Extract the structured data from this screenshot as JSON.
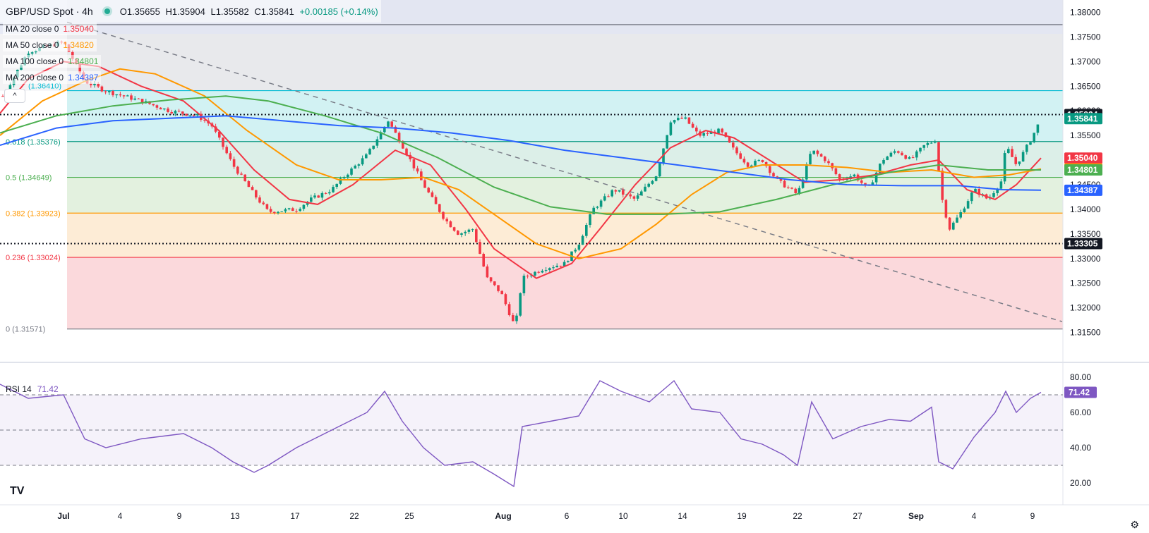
{
  "header": {
    "symbol": "GBP/USD Spot · 4h",
    "open": "O1.35655",
    "high": "H1.35904",
    "low": "L1.35582",
    "close": "C1.35841",
    "change": "+0.00185 (+0.14%)"
  },
  "ma_legend": [
    {
      "label": "MA 20 close 0",
      "value": "1.35040",
      "color": "#f23645"
    },
    {
      "label": "MA 50 close 0",
      "value": "1.34820",
      "color": "#ff9800"
    },
    {
      "label": "MA 100 close 0",
      "value": "1.34801",
      "color": "#4caf50"
    },
    {
      "label": "MA 200 close 0",
      "value": "1.34387",
      "color": "#2962ff"
    }
  ],
  "collapse_label": "^",
  "rsi_legend": {
    "label": "RSI 14",
    "value": "71.42"
  },
  "tv_logo": "TV",
  "settings_icon": "gear-icon",
  "chart_data": [
    {
      "type": "candlestick",
      "title": "GBP/USD Spot · 4h",
      "x_ticks": [
        "Jul",
        "4",
        "9",
        "13",
        "17",
        "22",
        "25",
        "Aug",
        "6",
        "10",
        "14",
        "19",
        "22",
        "27",
        "Sep",
        "4",
        "9"
      ],
      "y_ticks": [
        "1.38000",
        "1.37500",
        "1.37000",
        "1.36500",
        "1.36000",
        "1.35500",
        "1.35000",
        "1.34500",
        "1.34000",
        "1.33500",
        "1.33000",
        "1.32500",
        "1.32000",
        "1.31500"
      ],
      "ylim": [
        1.3115,
        1.3825
      ],
      "fib_levels": [
        {
          "label": "0.618 (1.35376)",
          "value": 1.35376,
          "color": "#089981"
        },
        {
          "label": "0.5 (1.34649)",
          "value": 1.34649,
          "color": "#4caf50"
        },
        {
          "label": "0.382 (1.33923)",
          "value": 1.33923,
          "color": "#ff9800"
        },
        {
          "label": "0.236 (1.33024)",
          "value": 1.33024,
          "color": "#f23645"
        },
        {
          "label": "0 (1.31571)",
          "value": 1.31571,
          "color": "#787b86"
        },
        {
          "label": "(1.36410)",
          "value": 1.3641,
          "color": "#00bcd4"
        }
      ],
      "horizontal_lines": [
        {
          "value": 1.3775,
          "style": "solid",
          "color": "#5d606b"
        },
        {
          "value": 1.35924,
          "style": "dotted",
          "color": "#131722"
        },
        {
          "value": 1.33305,
          "style": "dotted",
          "color": "#131722"
        }
      ],
      "price_badges": [
        {
          "text": "1.35924",
          "value": 1.35924,
          "color": "#131722"
        },
        {
          "text": "1.35841",
          "value": 1.35841,
          "color": "#089981"
        },
        {
          "text": "1.35040",
          "value": 1.3504,
          "color": "#f23645"
        },
        {
          "text": "1.34820",
          "value": 1.3482,
          "color": "#ff9800"
        },
        {
          "text": "1.34801",
          "value": 1.34801,
          "color": "#4caf50"
        },
        {
          "text": "1.34387",
          "value": 1.34387,
          "color": "#2962ff"
        },
        {
          "text": "1.33305",
          "value": 1.33305,
          "color": "#131722"
        }
      ],
      "close_path": [
        [
          0,
          1.362
        ],
        [
          40,
          1.372
        ],
        [
          90,
          1.374
        ],
        [
          120,
          1.366
        ],
        [
          150,
          1.364
        ],
        [
          200,
          1.362
        ],
        [
          240,
          1.36
        ],
        [
          280,
          1.359
        ],
        [
          300,
          1.357
        ],
        [
          330,
          1.349
        ],
        [
          360,
          1.343
        ],
        [
          380,
          1.3395
        ],
        [
          420,
          1.34
        ],
        [
          440,
          1.342
        ],
        [
          470,
          1.344
        ],
        [
          490,
          1.347
        ],
        [
          520,
          1.351
        ],
        [
          550,
          1.358
        ],
        [
          570,
          1.353
        ],
        [
          600,
          1.345
        ],
        [
          630,
          1.338
        ],
        [
          650,
          1.335
        ],
        [
          670,
          1.336
        ],
        [
          690,
          1.326
        ],
        [
          710,
          1.323
        ],
        [
          730,
          1.316
        ],
        [
          740,
          1.326
        ],
        [
          770,
          1.328
        ],
        [
          800,
          1.329
        ],
        [
          820,
          1.333
        ],
        [
          840,
          1.34
        ],
        [
          870,
          1.344
        ],
        [
          900,
          1.342
        ],
        [
          930,
          1.347
        ],
        [
          950,
          1.358
        ],
        [
          970,
          1.3585
        ],
        [
          990,
          1.355
        ],
        [
          1020,
          1.356
        ],
        [
          1040,
          1.352
        ],
        [
          1060,
          1.349
        ],
        [
          1080,
          1.35
        ],
        [
          1100,
          1.346
        ],
        [
          1130,
          1.343
        ],
        [
          1150,
          1.352
        ],
        [
          1170,
          1.35
        ],
        [
          1190,
          1.346
        ],
        [
          1210,
          1.347
        ],
        [
          1230,
          1.344
        ],
        [
          1250,
          1.35
        ],
        [
          1270,
          1.352
        ],
        [
          1290,
          1.35
        ],
        [
          1310,
          1.353
        ],
        [
          1325,
          1.354
        ],
        [
          1335,
          1.342
        ],
        [
          1345,
          1.336
        ],
        [
          1360,
          1.339
        ],
        [
          1380,
          1.344
        ],
        [
          1400,
          1.342
        ],
        [
          1420,
          1.346
        ],
        [
          1425,
          1.353
        ],
        [
          1440,
          1.349
        ],
        [
          1460,
          1.354
        ],
        [
          1475,
          1.3584
        ]
      ],
      "ma_paths": [
        {
          "name": "MA 20",
          "color": "#f23645",
          "points": [
            [
              0,
              1.3595
            ],
            [
              40,
              1.3665
            ],
            [
              90,
              1.37
            ],
            [
              140,
              1.369
            ],
            [
              200,
              1.365
            ],
            [
              260,
              1.362
            ],
            [
              310,
              1.356
            ],
            [
              360,
              1.348
            ],
            [
              410,
              1.342
            ],
            [
              450,
              1.341
            ],
            [
              500,
              1.345
            ],
            [
              560,
              1.352
            ],
            [
              610,
              1.349
            ],
            [
              660,
              1.34
            ],
            [
              700,
              1.332
            ],
            [
              760,
              1.326
            ],
            [
              810,
              1.329
            ],
            [
              850,
              1.336
            ],
            [
              900,
              1.345
            ],
            [
              950,
              1.3525
            ],
            [
              1000,
              1.356
            ],
            [
              1040,
              1.3545
            ],
            [
              1090,
              1.35
            ],
            [
              1140,
              1.3455
            ],
            [
              1190,
              1.346
            ],
            [
              1240,
              1.347
            ],
            [
              1290,
              1.349
            ],
            [
              1330,
              1.35
            ],
            [
              1370,
              1.344
            ],
            [
              1410,
              1.342
            ],
            [
              1440,
              1.345
            ],
            [
              1475,
              1.3504
            ]
          ]
        },
        {
          "name": "MA 50",
          "color": "#ff9800",
          "points": [
            [
              0,
              1.355
            ],
            [
              60,
              1.362
            ],
            [
              120,
              1.366
            ],
            [
              170,
              1.3685
            ],
            [
              220,
              1.3675
            ],
            [
              290,
              1.363
            ],
            [
              350,
              1.356
            ],
            [
              420,
              1.349
            ],
            [
              480,
              1.346
            ],
            [
              540,
              1.346
            ],
            [
              600,
              1.3465
            ],
            [
              650,
              1.344
            ],
            [
              700,
              1.339
            ],
            [
              760,
              1.333
            ],
            [
              820,
              1.33
            ],
            [
              880,
              1.332
            ],
            [
              930,
              1.337
            ],
            [
              980,
              1.343
            ],
            [
              1030,
              1.3475
            ],
            [
              1080,
              1.349
            ],
            [
              1140,
              1.349
            ],
            [
              1200,
              1.3485
            ],
            [
              1260,
              1.3475
            ],
            [
              1320,
              1.348
            ],
            [
              1380,
              1.3465
            ],
            [
              1430,
              1.347
            ],
            [
              1475,
              1.3482
            ]
          ]
        },
        {
          "name": "MA 100",
          "color": "#4caf50",
          "points": [
            [
              0,
              1.3555
            ],
            [
              80,
              1.359
            ],
            [
              160,
              1.361
            ],
            [
              240,
              1.3622
            ],
            [
              320,
              1.363
            ],
            [
              380,
              1.362
            ],
            [
              460,
              1.359
            ],
            [
              540,
              1.3555
            ],
            [
              620,
              1.3505
            ],
            [
              700,
              1.3445
            ],
            [
              780,
              1.3405
            ],
            [
              860,
              1.339
            ],
            [
              940,
              1.339
            ],
            [
              1020,
              1.3395
            ],
            [
              1100,
              1.342
            ],
            [
              1180,
              1.345
            ],
            [
              1260,
              1.3475
            ],
            [
              1330,
              1.349
            ],
            [
              1400,
              1.348
            ],
            [
              1475,
              1.348
            ]
          ]
        },
        {
          "name": "MA 200",
          "color": "#2962ff",
          "points": [
            [
              0,
              1.353
            ],
            [
              80,
              1.3565
            ],
            [
              160,
              1.358
            ],
            [
              240,
              1.3585
            ],
            [
              320,
              1.359
            ],
            [
              400,
              1.358
            ],
            [
              480,
              1.357
            ],
            [
              560,
              1.3565
            ],
            [
              640,
              1.3555
            ],
            [
              720,
              1.354
            ],
            [
              800,
              1.352
            ],
            [
              880,
              1.3505
            ],
            [
              960,
              1.349
            ],
            [
              1040,
              1.3475
            ],
            [
              1120,
              1.346
            ],
            [
              1200,
              1.345
            ],
            [
              1280,
              1.3448
            ],
            [
              1360,
              1.3448
            ],
            [
              1420,
              1.344
            ],
            [
              1475,
              1.3439
            ]
          ]
        }
      ],
      "trendline": {
        "from": [
          95,
          1.378
        ],
        "to": [
          1505,
          1.3172
        ]
      }
    },
    {
      "type": "line",
      "title": "RSI 14",
      "y_ticks": [
        "80.00",
        "60.00",
        "40.00",
        "20.00"
      ],
      "ylim": [
        14,
        86
      ],
      "bands": [
        70,
        50,
        30
      ],
      "last_value": 71.42,
      "series": [
        [
          0,
          76
        ],
        [
          40,
          68
        ],
        [
          90,
          70
        ],
        [
          120,
          45
        ],
        [
          150,
          40
        ],
        [
          200,
          45
        ],
        [
          260,
          48
        ],
        [
          300,
          40
        ],
        [
          330,
          32
        ],
        [
          360,
          26
        ],
        [
          380,
          30
        ],
        [
          420,
          40
        ],
        [
          470,
          50
        ],
        [
          520,
          60
        ],
        [
          545,
          72
        ],
        [
          570,
          55
        ],
        [
          600,
          40
        ],
        [
          630,
          30
        ],
        [
          670,
          32
        ],
        [
          700,
          25
        ],
        [
          728,
          18
        ],
        [
          740,
          52
        ],
        [
          780,
          55
        ],
        [
          820,
          58
        ],
        [
          850,
          78
        ],
        [
          880,
          72
        ],
        [
          920,
          66
        ],
        [
          955,
          78
        ],
        [
          980,
          62
        ],
        [
          1020,
          60
        ],
        [
          1050,
          45
        ],
        [
          1080,
          42
        ],
        [
          1110,
          36
        ],
        [
          1130,
          30
        ],
        [
          1150,
          66
        ],
        [
          1180,
          45
        ],
        [
          1220,
          52
        ],
        [
          1260,
          56
        ],
        [
          1290,
          55
        ],
        [
          1320,
          63
        ],
        [
          1330,
          32
        ],
        [
          1350,
          28
        ],
        [
          1380,
          46
        ],
        [
          1410,
          60
        ],
        [
          1425,
          72
        ],
        [
          1440,
          60
        ],
        [
          1460,
          68
        ],
        [
          1475,
          71.4
        ]
      ]
    }
  ]
}
